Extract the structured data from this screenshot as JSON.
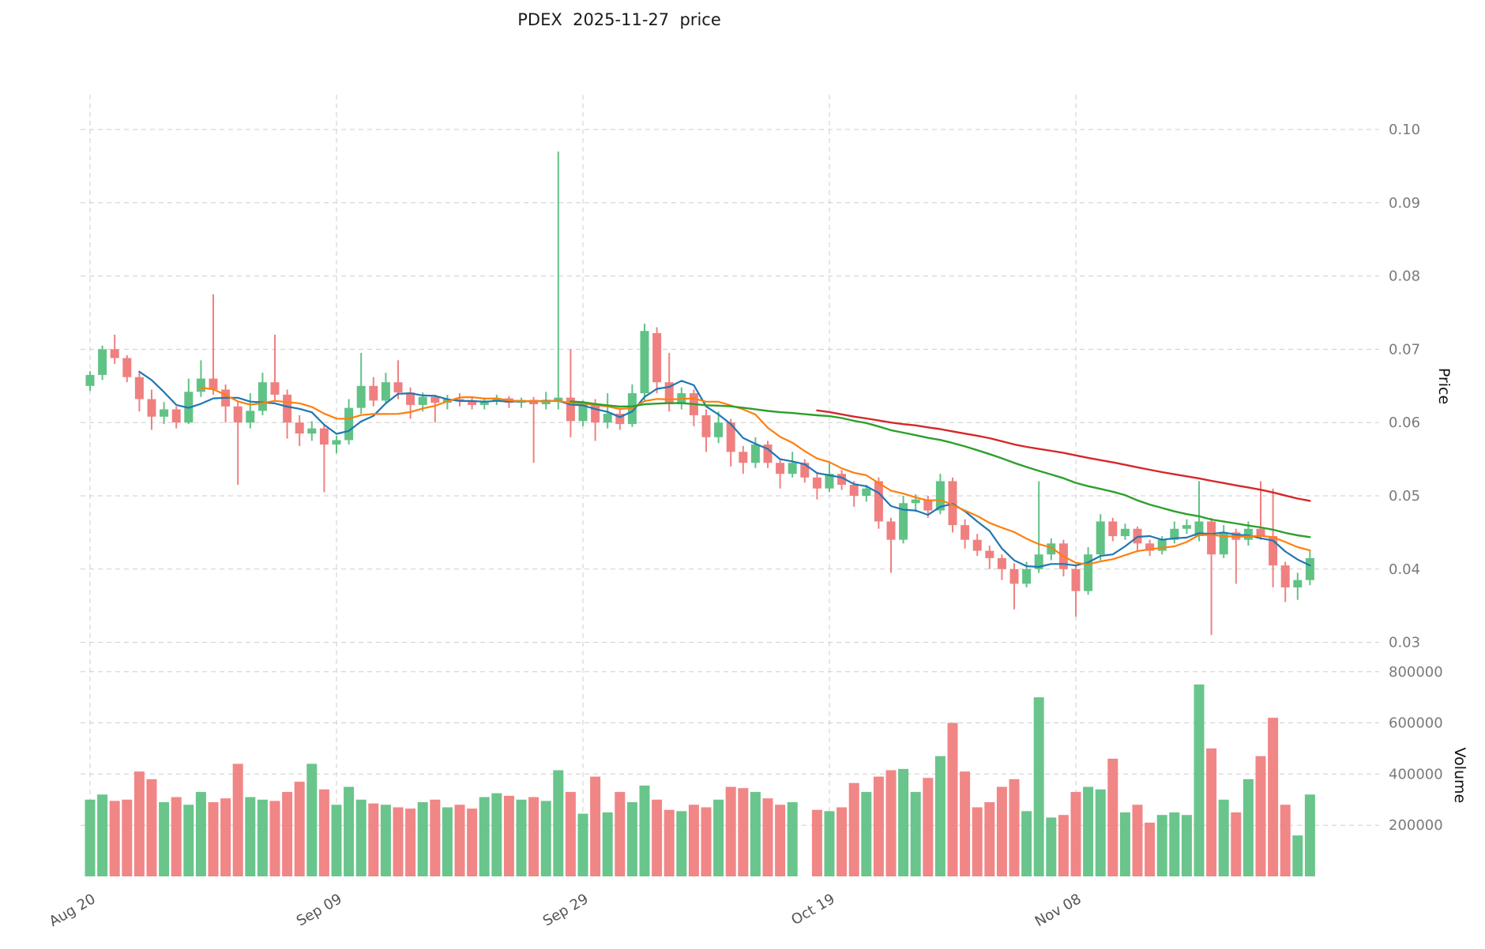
{
  "chart_data": {
    "type": "candlestick",
    "title": "PDEX  2025-11-27  price",
    "price_axis_label": "Price",
    "volume_axis_label": "Volume",
    "legend_position": "none",
    "grid": true,
    "price_ticks": [
      0.03,
      0.04,
      0.05,
      0.06,
      0.07,
      0.08,
      0.09,
      0.1
    ],
    "price_range": [
      0.03,
      0.1
    ],
    "volume_ticks": [
      200000,
      400000,
      600000,
      800000
    ],
    "volume_range": [
      0,
      850000
    ],
    "x_ticks": [
      {
        "index": 0,
        "label": "Aug 20"
      },
      {
        "index": 20,
        "label": "Sep 09"
      },
      {
        "index": 40,
        "label": "Sep 29"
      },
      {
        "index": 60,
        "label": "Oct 19"
      },
      {
        "index": 80,
        "label": "Nov 08"
      }
    ],
    "colors": {
      "up": "#61c285",
      "down": "#f08080",
      "grid": "#cdcdcd",
      "tick_label": "#7a7a7a",
      "x_tick_label": "#555555"
    },
    "moving_averages": [
      {
        "name": "ma5",
        "window": 5,
        "color": "#1f77b4",
        "width": 2.2
      },
      {
        "name": "ma10",
        "window": 10,
        "color": "#ff7f0e",
        "width": 2.2
      },
      {
        "name": "ma40",
        "window": 40,
        "color": "#2ca02c",
        "width": 2.4
      },
      {
        "name": "ma60",
        "window": 60,
        "color": "#d62728",
        "width": 2.4
      }
    ],
    "ohlc": [
      [
        0.065,
        0.067,
        0.0643,
        0.0665
      ],
      [
        0.0665,
        0.0705,
        0.0658,
        0.07
      ],
      [
        0.07,
        0.072,
        0.068,
        0.0688
      ],
      [
        0.0688,
        0.0692,
        0.0655,
        0.0662
      ],
      [
        0.0662,
        0.0668,
        0.0615,
        0.0632
      ],
      [
        0.0632,
        0.0645,
        0.059,
        0.0608
      ],
      [
        0.0608,
        0.0628,
        0.0598,
        0.0618
      ],
      [
        0.0618,
        0.0622,
        0.0592,
        0.06
      ],
      [
        0.06,
        0.066,
        0.0598,
        0.0642
      ],
      [
        0.0642,
        0.0685,
        0.0635,
        0.066
      ],
      [
        0.066,
        0.0775,
        0.0638,
        0.0645
      ],
      [
        0.0645,
        0.0652,
        0.06,
        0.0622
      ],
      [
        0.0622,
        0.0628,
        0.0515,
        0.06
      ],
      [
        0.06,
        0.064,
        0.0592,
        0.0616
      ],
      [
        0.0616,
        0.0668,
        0.061,
        0.0655
      ],
      [
        0.0655,
        0.072,
        0.0628,
        0.0638
      ],
      [
        0.0638,
        0.0645,
        0.0578,
        0.06
      ],
      [
        0.06,
        0.061,
        0.0568,
        0.0585
      ],
      [
        0.0585,
        0.0602,
        0.0575,
        0.0592
      ],
      [
        0.0592,
        0.0598,
        0.0505,
        0.057
      ],
      [
        0.057,
        0.0582,
        0.0558,
        0.0576
      ],
      [
        0.0576,
        0.0632,
        0.057,
        0.062
      ],
      [
        0.062,
        0.0695,
        0.0612,
        0.065
      ],
      [
        0.065,
        0.0662,
        0.0622,
        0.063
      ],
      [
        0.063,
        0.0668,
        0.0625,
        0.0655
      ],
      [
        0.0655,
        0.0685,
        0.0632,
        0.0641
      ],
      [
        0.0641,
        0.0648,
        0.0605,
        0.0624
      ],
      [
        0.0624,
        0.0641,
        0.0615,
        0.0635
      ],
      [
        0.0635,
        0.0638,
        0.06,
        0.0627
      ],
      [
        0.0627,
        0.0638,
        0.0618,
        0.0632
      ],
      [
        0.0632,
        0.064,
        0.0622,
        0.0629
      ],
      [
        0.0629,
        0.0635,
        0.0618,
        0.0624
      ],
      [
        0.0624,
        0.0634,
        0.0618,
        0.063
      ],
      [
        0.063,
        0.0638,
        0.0624,
        0.0633
      ],
      [
        0.0633,
        0.0636,
        0.062,
        0.0627
      ],
      [
        0.0627,
        0.0634,
        0.062,
        0.0631
      ],
      [
        0.0631,
        0.0635,
        0.0545,
        0.0625
      ],
      [
        0.0625,
        0.0642,
        0.0618,
        0.0631
      ],
      [
        0.0628,
        0.097,
        0.0618,
        0.0634
      ],
      [
        0.0634,
        0.07,
        0.058,
        0.0602
      ],
      [
        0.0602,
        0.063,
        0.0595,
        0.0625
      ],
      [
        0.0625,
        0.0632,
        0.0575,
        0.06
      ],
      [
        0.06,
        0.064,
        0.0592,
        0.0612
      ],
      [
        0.0612,
        0.062,
        0.059,
        0.0598
      ],
      [
        0.0598,
        0.0652,
        0.0594,
        0.064
      ],
      [
        0.064,
        0.0735,
        0.063,
        0.0725
      ],
      [
        0.0722,
        0.073,
        0.064,
        0.0655
      ],
      [
        0.0655,
        0.0695,
        0.0615,
        0.0625
      ],
      [
        0.0625,
        0.0648,
        0.0618,
        0.064
      ],
      [
        0.064,
        0.0645,
        0.0595,
        0.061
      ],
      [
        0.061,
        0.0618,
        0.056,
        0.058
      ],
      [
        0.058,
        0.0615,
        0.0572,
        0.06
      ],
      [
        0.06,
        0.0605,
        0.054,
        0.056
      ],
      [
        0.056,
        0.0568,
        0.053,
        0.0545
      ],
      [
        0.0545,
        0.058,
        0.0538,
        0.057
      ],
      [
        0.057,
        0.0575,
        0.0538,
        0.0545
      ],
      [
        0.0545,
        0.055,
        0.051,
        0.053
      ],
      [
        0.053,
        0.056,
        0.0525,
        0.0545
      ],
      [
        0.0545,
        0.055,
        0.0518,
        0.0525
      ],
      [
        0.0525,
        0.0532,
        0.0495,
        0.051
      ],
      [
        0.051,
        0.0545,
        0.0505,
        0.053
      ],
      [
        0.053,
        0.0535,
        0.0508,
        0.0515
      ],
      [
        0.0515,
        0.052,
        0.0485,
        0.05
      ],
      [
        0.05,
        0.0515,
        0.0492,
        0.051
      ],
      [
        0.052,
        0.0525,
        0.0455,
        0.0465
      ],
      [
        0.0465,
        0.047,
        0.0395,
        0.044
      ],
      [
        0.044,
        0.05,
        0.0435,
        0.049
      ],
      [
        0.049,
        0.0502,
        0.0478,
        0.0495
      ],
      [
        0.0495,
        0.05,
        0.047,
        0.048
      ],
      [
        0.048,
        0.053,
        0.0475,
        0.052
      ],
      [
        0.052,
        0.0525,
        0.045,
        0.046
      ],
      [
        0.046,
        0.0468,
        0.0428,
        0.044
      ],
      [
        0.044,
        0.0448,
        0.0418,
        0.0425
      ],
      [
        0.0425,
        0.0432,
        0.04,
        0.0415
      ],
      [
        0.0415,
        0.042,
        0.0385,
        0.04
      ],
      [
        0.04,
        0.0408,
        0.0345,
        0.038
      ],
      [
        0.038,
        0.041,
        0.0375,
        0.04
      ],
      [
        0.04,
        0.052,
        0.0395,
        0.042
      ],
      [
        0.042,
        0.0442,
        0.0412,
        0.0435
      ],
      [
        0.0435,
        0.044,
        0.039,
        0.04
      ],
      [
        0.04,
        0.0405,
        0.0335,
        0.037
      ],
      [
        0.037,
        0.043,
        0.0365,
        0.042
      ],
      [
        0.042,
        0.0475,
        0.0412,
        0.0465
      ],
      [
        0.0465,
        0.047,
        0.0438,
        0.0445
      ],
      [
        0.0445,
        0.0462,
        0.044,
        0.0455
      ],
      [
        0.0455,
        0.0458,
        0.0425,
        0.0435
      ],
      [
        0.0435,
        0.044,
        0.0418,
        0.0425
      ],
      [
        0.0425,
        0.0445,
        0.042,
        0.044
      ],
      [
        0.044,
        0.0465,
        0.0435,
        0.0455
      ],
      [
        0.0455,
        0.0468,
        0.0448,
        0.046
      ],
      [
        0.0445,
        0.052,
        0.0438,
        0.0465
      ],
      [
        0.0465,
        0.047,
        0.031,
        0.042
      ],
      [
        0.042,
        0.046,
        0.0415,
        0.045
      ],
      [
        0.045,
        0.0455,
        0.038,
        0.044
      ],
      [
        0.044,
        0.0465,
        0.0432,
        0.0455
      ],
      [
        0.0455,
        0.052,
        0.044,
        0.0445
      ],
      [
        0.0445,
        0.051,
        0.0375,
        0.0405
      ],
      [
        0.0405,
        0.041,
        0.0355,
        0.0375
      ],
      [
        0.0375,
        0.0395,
        0.0358,
        0.0385
      ],
      [
        0.0385,
        0.0425,
        0.0378,
        0.0415
      ]
    ],
    "volumes": [
      300000,
      320000,
      295000,
      300000,
      410000,
      380000,
      290000,
      310000,
      280000,
      330000,
      290000,
      305000,
      440000,
      310000,
      300000,
      295000,
      330000,
      370000,
      440000,
      340000,
      280000,
      350000,
      300000,
      285000,
      280000,
      270000,
      265000,
      290000,
      300000,
      270000,
      280000,
      265000,
      310000,
      325000,
      315000,
      300000,
      310000,
      295000,
      415000,
      330000,
      245000,
      390000,
      250000,
      330000,
      290000,
      355000,
      300000,
      260000,
      255000,
      280000,
      270000,
      300000,
      350000,
      345000,
      330000,
      305000,
      280000,
      290000,
      0,
      260000,
      255000,
      270000,
      365000,
      330000,
      390000,
      415000,
      420000,
      330000,
      385000,
      470000,
      600000,
      410000,
      270000,
      290000,
      350000,
      380000,
      255000,
      700000,
      230000,
      240000,
      330000,
      350000,
      340000,
      460000,
      250000,
      280000,
      210000,
      240000,
      250000,
      240000,
      750000,
      500000,
      300000,
      250000,
      380000,
      470000,
      620000,
      280000,
      160000,
      320000
    ]
  }
}
